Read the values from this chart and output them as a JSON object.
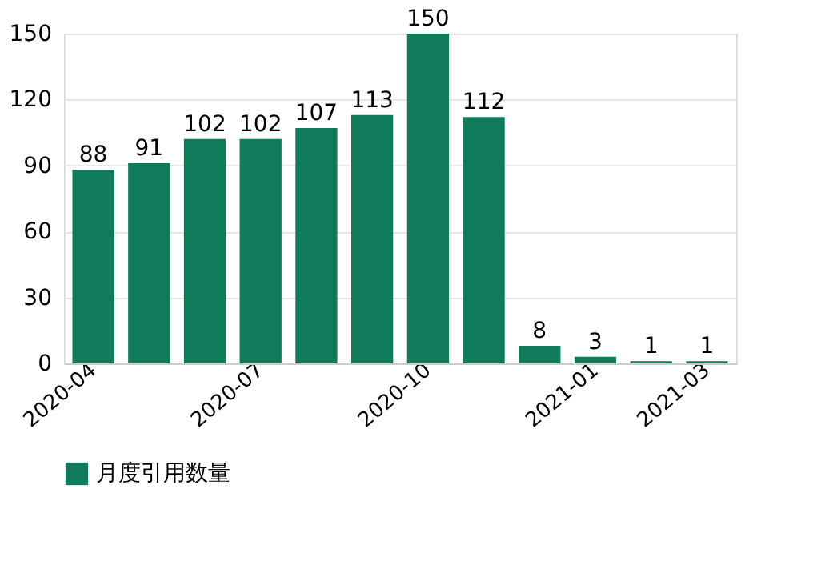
{
  "chart_data": {
    "type": "bar",
    "categories": [
      "2020-04",
      null,
      null,
      "2020-07",
      null,
      null,
      "2020-10",
      null,
      null,
      "2021-01",
      null,
      "2021-03"
    ],
    "series": [
      {
        "name": "月度引用数量",
        "color": "#0f7b5a",
        "values": [
          88,
          91,
          102,
          102,
          107,
          113,
          150,
          112,
          8,
          3,
          1,
          1
        ]
      }
    ],
    "ylim": [
      0,
      150
    ],
    "yticks": [
      0,
      30,
      60,
      90,
      120,
      150
    ],
    "grid": "y",
    "legend": "bottom",
    "data_labels": true
  }
}
